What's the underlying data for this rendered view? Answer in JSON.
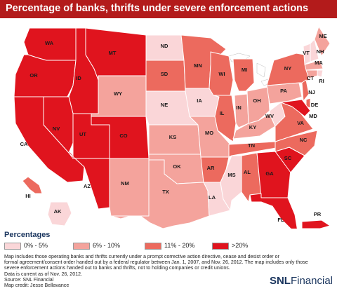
{
  "title": "Percentage of banks, thrifts under severe enforcement actions",
  "legend": {
    "title": "Percentages",
    "items": [
      {
        "label": "0% - 5%",
        "color": "#fad6d8"
      },
      {
        "label": "6% - 10%",
        "color": "#f4a39c"
      },
      {
        "label": "11% - 20%",
        "color": "#ec6a5e"
      },
      {
        "label": ">20%",
        "color": "#e0141e"
      }
    ]
  },
  "states": [
    {
      "abbr": "WA",
      "bin": 3
    },
    {
      "abbr": "OR",
      "bin": 3
    },
    {
      "abbr": "CA",
      "bin": 3
    },
    {
      "abbr": "ID",
      "bin": 3
    },
    {
      "abbr": "NV",
      "bin": 3
    },
    {
      "abbr": "UT",
      "bin": 3
    },
    {
      "abbr": "AZ",
      "bin": 3
    },
    {
      "abbr": "MT",
      "bin": 3
    },
    {
      "abbr": "WY",
      "bin": 1
    },
    {
      "abbr": "CO",
      "bin": 3
    },
    {
      "abbr": "NM",
      "bin": 1
    },
    {
      "abbr": "ND",
      "bin": 0
    },
    {
      "abbr": "SD",
      "bin": 2
    },
    {
      "abbr": "NE",
      "bin": 0
    },
    {
      "abbr": "KS",
      "bin": 1
    },
    {
      "abbr": "OK",
      "bin": 1
    },
    {
      "abbr": "TX",
      "bin": 1
    },
    {
      "abbr": "MN",
      "bin": 2
    },
    {
      "abbr": "IA",
      "bin": 0
    },
    {
      "abbr": "MO",
      "bin": 1
    },
    {
      "abbr": "AR",
      "bin": 2
    },
    {
      "abbr": "LA",
      "bin": 0
    },
    {
      "abbr": "WI",
      "bin": 2
    },
    {
      "abbr": "IL",
      "bin": 2
    },
    {
      "abbr": "MI",
      "bin": 2
    },
    {
      "abbr": "IN",
      "bin": 1
    },
    {
      "abbr": "OH",
      "bin": 1
    },
    {
      "abbr": "KY",
      "bin": 1
    },
    {
      "abbr": "TN",
      "bin": 2
    },
    {
      "abbr": "MS",
      "bin": 0
    },
    {
      "abbr": "AL",
      "bin": 2
    },
    {
      "abbr": "GA",
      "bin": 3
    },
    {
      "abbr": "FL",
      "bin": 3
    },
    {
      "abbr": "SC",
      "bin": 3
    },
    {
      "abbr": "NC",
      "bin": 2
    },
    {
      "abbr": "VA",
      "bin": 2
    },
    {
      "abbr": "WV",
      "bin": 0
    },
    {
      "abbr": "PA",
      "bin": 1
    },
    {
      "abbr": "NY",
      "bin": 2
    },
    {
      "abbr": "VT",
      "bin": 0
    },
    {
      "abbr": "NH",
      "bin": 0
    },
    {
      "abbr": "ME",
      "bin": 1
    },
    {
      "abbr": "MA",
      "bin": 1
    },
    {
      "abbr": "RI",
      "bin": 0
    },
    {
      "abbr": "CT",
      "bin": 1
    },
    {
      "abbr": "NJ",
      "bin": 2
    },
    {
      "abbr": "DE",
      "bin": 2
    },
    {
      "abbr": "MD",
      "bin": 3
    },
    {
      "abbr": "AK",
      "bin": 0
    },
    {
      "abbr": "HI",
      "bin": 2
    },
    {
      "abbr": "PR",
      "bin": 3
    }
  ],
  "notes": [
    "Map includes those operating banks and thrifts currently under a prompt corrective action directive, cease and desist order or",
    "formal agreement/consent order handed out by a federal regulator between Jan. 1, 2007, and Nov. 26, 2012. The map includes only those",
    "severe enforcement actions handed out to banks and thrifts, not to holding companies or credit unions.",
    "Data is current as of Nov. 26, 2012.",
    "Source: SNL Financial",
    "Map credit: Jesse Bellavance"
  ],
  "brand": {
    "prefix": "SNL",
    "suffix": "Financial"
  }
}
